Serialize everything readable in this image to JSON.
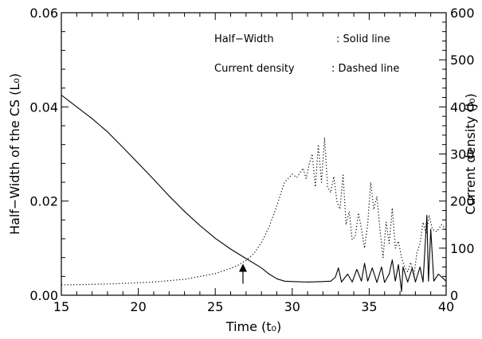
{
  "chart_data": {
    "type": "line",
    "xlabel": "Time (t₀)",
    "ylabel_left": "Half−Width of the CS (L₀)",
    "ylabel_right": "Current density (J₀)",
    "xlim": [
      15,
      40
    ],
    "ylim_left": [
      0.0,
      0.06
    ],
    "ylim_right": [
      0,
      600
    ],
    "xticks": [
      "15",
      "20",
      "25",
      "30",
      "35",
      "40"
    ],
    "yticks_left": [
      "0.00",
      "0.02",
      "0.04",
      "0.06"
    ],
    "yticks_right": [
      "0",
      "100",
      "200",
      "300",
      "400",
      "500",
      "600"
    ],
    "legend": [
      {
        "label": "Half−Width",
        "style": ": Solid line"
      },
      {
        "label": "Current density",
        "style": ": Dashed line"
      }
    ],
    "legend_placement": "top-right",
    "grid": false,
    "annotation": {
      "type": "arrow",
      "x": 26.8,
      "y": 0.0065
    },
    "series": [
      {
        "name": "Half−Width",
        "axis": "left",
        "style": "solid",
        "points": [
          [
            15.0,
            0.0425
          ],
          [
            16.0,
            0.04
          ],
          [
            17.0,
            0.0375
          ],
          [
            18.0,
            0.0347
          ],
          [
            19.0,
            0.0314
          ],
          [
            20.0,
            0.028
          ],
          [
            21.0,
            0.0246
          ],
          [
            22.0,
            0.0211
          ],
          [
            23.0,
            0.0178
          ],
          [
            24.0,
            0.0148
          ],
          [
            25.0,
            0.0121
          ],
          [
            26.0,
            0.0098
          ],
          [
            27.0,
            0.0078
          ],
          [
            28.0,
            0.0058
          ],
          [
            28.5,
            0.0045
          ],
          [
            29.0,
            0.0035
          ],
          [
            29.5,
            0.003
          ],
          [
            30.0,
            0.0029
          ],
          [
            31.0,
            0.0028
          ],
          [
            32.0,
            0.0029
          ],
          [
            32.5,
            0.003
          ],
          [
            32.8,
            0.0038
          ],
          [
            33.0,
            0.0058
          ],
          [
            33.2,
            0.0028
          ],
          [
            33.6,
            0.0045
          ],
          [
            33.9,
            0.0028
          ],
          [
            34.2,
            0.0055
          ],
          [
            34.5,
            0.003
          ],
          [
            34.7,
            0.0068
          ],
          [
            34.9,
            0.003
          ],
          [
            35.2,
            0.0058
          ],
          [
            35.5,
            0.0027
          ],
          [
            35.8,
            0.006
          ],
          [
            36.0,
            0.0027
          ],
          [
            36.3,
            0.0045
          ],
          [
            36.5,
            0.0075
          ],
          [
            36.7,
            0.003
          ],
          [
            36.9,
            0.0065
          ],
          [
            37.1,
            0.0008
          ],
          [
            37.2,
            0.006
          ],
          [
            37.5,
            0.0028
          ],
          [
            37.8,
            0.0058
          ],
          [
            38.0,
            0.0028
          ],
          [
            38.3,
            0.006
          ],
          [
            38.5,
            0.0028
          ],
          [
            38.75,
            0.017
          ],
          [
            38.85,
            0.003
          ],
          [
            39.0,
            0.014
          ],
          [
            39.2,
            0.003
          ],
          [
            39.5,
            0.0045
          ],
          [
            40.0,
            0.003
          ]
        ]
      },
      {
        "name": "Current density",
        "axis": "right",
        "style": "dotted",
        "points": [
          [
            15.0,
            22
          ],
          [
            17.0,
            23
          ],
          [
            19.0,
            25
          ],
          [
            21.0,
            28
          ],
          [
            23.0,
            34
          ],
          [
            25.0,
            46
          ],
          [
            26.0,
            57
          ],
          [
            26.5,
            64
          ],
          [
            27.0,
            74
          ],
          [
            27.5,
            88
          ],
          [
            28.0,
            112
          ],
          [
            28.5,
            145
          ],
          [
            29.0,
            190
          ],
          [
            29.5,
            240
          ],
          [
            30.0,
            257
          ],
          [
            30.3,
            250
          ],
          [
            30.5,
            260
          ],
          [
            30.7,
            270
          ],
          [
            30.9,
            248
          ],
          [
            31.1,
            278
          ],
          [
            31.3,
            300
          ],
          [
            31.5,
            230
          ],
          [
            31.7,
            320
          ],
          [
            31.9,
            240
          ],
          [
            32.1,
            335
          ],
          [
            32.3,
            230
          ],
          [
            32.5,
            218
          ],
          [
            32.7,
            252
          ],
          [
            32.9,
            200
          ],
          [
            33.1,
            183
          ],
          [
            33.3,
            255
          ],
          [
            33.5,
            150
          ],
          [
            33.7,
            178
          ],
          [
            33.9,
            118
          ],
          [
            34.1,
            125
          ],
          [
            34.3,
            175
          ],
          [
            34.5,
            140
          ],
          [
            34.7,
            100
          ],
          [
            34.9,
            150
          ],
          [
            35.1,
            240
          ],
          [
            35.3,
            182
          ],
          [
            35.5,
            210
          ],
          [
            35.7,
            140
          ],
          [
            35.9,
            80
          ],
          [
            36.1,
            155
          ],
          [
            36.3,
            110
          ],
          [
            36.5,
            185
          ],
          [
            36.7,
            100
          ],
          [
            36.9,
            115
          ],
          [
            37.1,
            80
          ],
          [
            37.3,
            60
          ],
          [
            37.5,
            50
          ],
          [
            37.7,
            70
          ],
          [
            37.9,
            40
          ],
          [
            38.1,
            90
          ],
          [
            38.3,
            110
          ],
          [
            38.5,
            155
          ],
          [
            38.7,
            130
          ],
          [
            38.9,
            170
          ],
          [
            39.1,
            140
          ],
          [
            39.4,
            135
          ],
          [
            39.7,
            150
          ],
          [
            40.0,
            140
          ]
        ]
      }
    ]
  }
}
